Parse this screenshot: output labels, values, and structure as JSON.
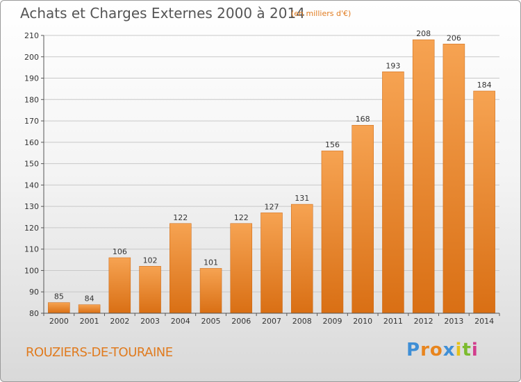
{
  "header": {
    "title": "Achats et Charges Externes 2000 à 2014",
    "subtitle": "(en milliers d'€)"
  },
  "footer": {
    "location": "ROUZIERS-DE-TOURAINE",
    "brand_letters": [
      "P",
      "r",
      "o",
      "x",
      "i",
      "t",
      "i"
    ],
    "brand_colors": [
      "#3f8fd6",
      "#e8851e",
      "#e8851e",
      "#3f8fd6",
      "#e5c21a",
      "#7cbb2e",
      "#d23d8c"
    ]
  },
  "colors": {
    "bar_light": "#f6a352",
    "bar_dark": "#d96f14",
    "bar_edge": "#c96510",
    "grid": "#c8c8c8"
  },
  "chart_data": {
    "type": "bar",
    "title": "Achats et Charges Externes 2000 à 2014",
    "subtitle": "(en milliers d'€)",
    "categories": [
      "2000",
      "2001",
      "2002",
      "2003",
      "2004",
      "2005",
      "2006",
      "2007",
      "2008",
      "2009",
      "2010",
      "2011",
      "2012",
      "2013",
      "2014"
    ],
    "values": [
      85,
      84,
      106,
      102,
      122,
      101,
      122,
      127,
      131,
      156,
      168,
      193,
      208,
      206,
      184
    ],
    "ylim": [
      80,
      210
    ],
    "yticks": [
      80,
      90,
      100,
      110,
      120,
      130,
      140,
      150,
      160,
      170,
      180,
      190,
      200,
      210
    ],
    "grid": true,
    "xlabel": "",
    "ylabel": ""
  }
}
